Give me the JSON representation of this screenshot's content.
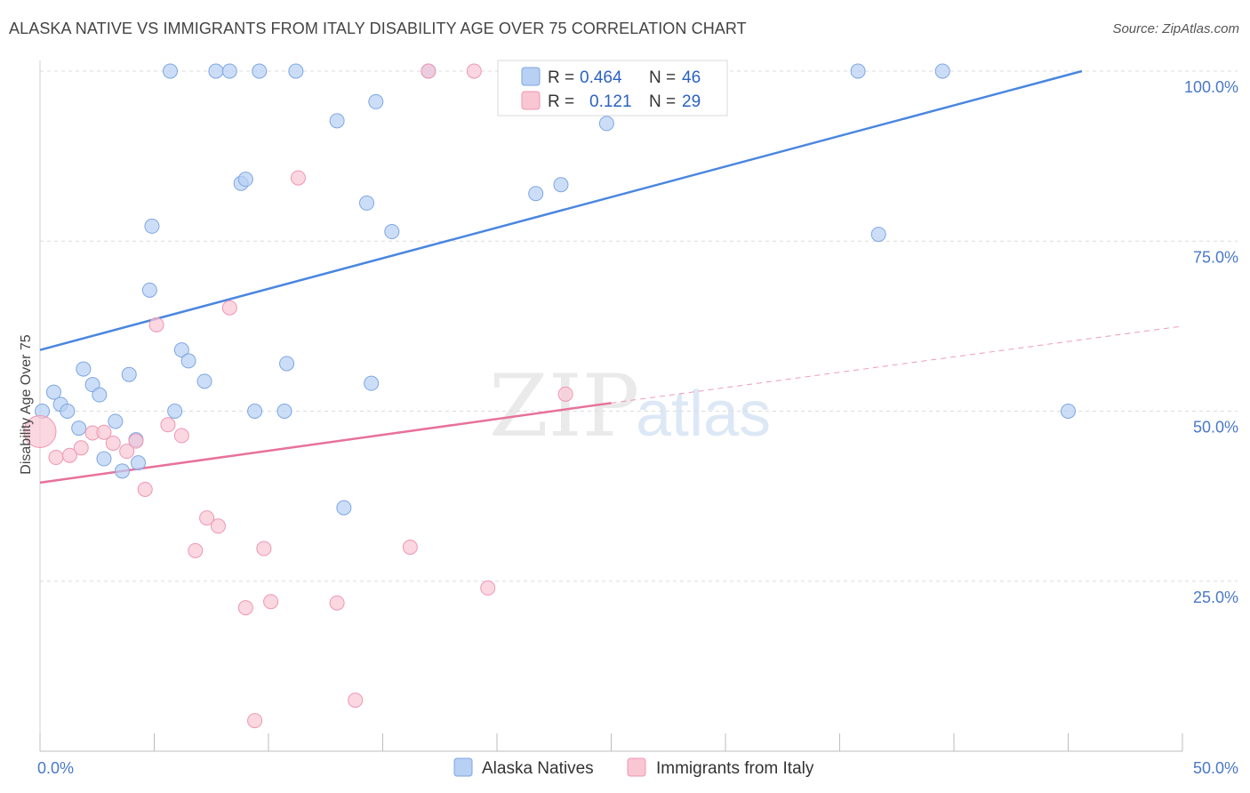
{
  "header": {
    "title": "ALASKA NATIVE VS IMMIGRANTS FROM ITALY DISABILITY AGE OVER 75 CORRELATION CHART",
    "source": "Source: ZipAtlas.com"
  },
  "watermark": {
    "zip": "ZIP",
    "atlas": "atlas"
  },
  "legend": {
    "r_label": "R =",
    "n_label": "N =",
    "entries": [
      {
        "r": "0.464",
        "n": "46",
        "fill": "#b7d0f3",
        "stroke": "#7ea6e3"
      },
      {
        "r": "0.121",
        "n": "29",
        "fill": "#f9c6d4",
        "stroke": "#ee97b1"
      }
    ]
  },
  "chart_data": {
    "type": "scatter",
    "title": "ALASKA NATIVE VS IMMIGRANTS FROM ITALY DISABILITY AGE OVER 75 CORRELATION CHART",
    "xlabel": "",
    "ylabel": "Disability Age Over 75",
    "xlim": [
      0,
      50
    ],
    "ylim": [
      0,
      105
    ],
    "x_tick_labels": [
      "0.0%",
      "50.0%"
    ],
    "y_ticks": [
      25,
      50,
      75,
      100
    ],
    "y_tick_labels": [
      "25.0%",
      "50.0%",
      "75.0%",
      "100.0%"
    ],
    "grid": true,
    "legend_position": "top-center",
    "series": [
      {
        "name": "Alaska Natives",
        "color": "#4a86e0",
        "fill": "#b7d0f3",
        "trend": {
          "x": [
            0,
            45.6
          ],
          "y": [
            59,
            100
          ]
        },
        "points": [
          [
            0.1,
            50
          ],
          [
            0.6,
            52.8
          ],
          [
            0.9,
            51
          ],
          [
            1.2,
            50
          ],
          [
            1.7,
            47.5
          ],
          [
            1.9,
            56.2
          ],
          [
            2.3,
            53.9
          ],
          [
            2.6,
            52.4
          ],
          [
            2.8,
            43
          ],
          [
            3.3,
            48.5
          ],
          [
            3.6,
            41.2
          ],
          [
            3.9,
            55.4
          ],
          [
            4.2,
            45.8
          ],
          [
            4.3,
            42.4
          ],
          [
            4.8,
            67.8
          ],
          [
            4.9,
            77.2
          ],
          [
            5.7,
            100
          ],
          [
            5.9,
            50
          ],
          [
            6.2,
            59
          ],
          [
            6.5,
            57.4
          ],
          [
            7.2,
            54.4
          ],
          [
            7.7,
            100
          ],
          [
            8.3,
            100
          ],
          [
            8.8,
            83.5
          ],
          [
            9.0,
            84.1
          ],
          [
            9.4,
            50
          ],
          [
            9.6,
            100
          ],
          [
            10.7,
            50
          ],
          [
            10.8,
            57
          ],
          [
            11.2,
            100
          ],
          [
            13.0,
            92.7
          ],
          [
            13.3,
            35.8
          ],
          [
            14.3,
            80.6
          ],
          [
            14.5,
            54.1
          ],
          [
            14.7,
            95.5
          ],
          [
            15.4,
            76.4
          ],
          [
            17.0,
            100
          ],
          [
            20.7,
            100
          ],
          [
            21.7,
            82
          ],
          [
            22.8,
            83.3
          ],
          [
            24.8,
            92.3
          ],
          [
            29.2,
            100
          ],
          [
            35.8,
            100
          ],
          [
            36.7,
            76
          ],
          [
            39.5,
            100
          ],
          [
            45.0,
            50
          ]
        ]
      },
      {
        "name": "Immigrants from Italy",
        "color": "#e8719a",
        "fill": "#f9c6d4",
        "trend": {
          "x": [
            0,
            25
          ],
          "y": [
            39.5,
            51.2
          ]
        },
        "trend_extension": {
          "x": [
            25,
            50
          ],
          "y": [
            51.2,
            62.5
          ]
        },
        "points": [
          [
            0,
            47
          ],
          [
            0.7,
            43.2
          ],
          [
            1.3,
            43.5
          ],
          [
            1.8,
            44.6
          ],
          [
            2.3,
            46.8
          ],
          [
            2.8,
            46.9
          ],
          [
            3.2,
            45.3
          ],
          [
            3.8,
            44.1
          ],
          [
            4.2,
            45.6
          ],
          [
            4.6,
            38.5
          ],
          [
            5.1,
            62.7
          ],
          [
            5.6,
            48
          ],
          [
            6.2,
            46.4
          ],
          [
            6.8,
            29.5
          ],
          [
            7.3,
            34.3
          ],
          [
            7.8,
            33.1
          ],
          [
            8.3,
            65.2
          ],
          [
            9.0,
            21.1
          ],
          [
            9.4,
            4.5
          ],
          [
            9.8,
            29.8
          ],
          [
            10.1,
            22
          ],
          [
            11.3,
            84.3
          ],
          [
            13.0,
            21.8
          ],
          [
            13.8,
            7.5
          ],
          [
            16.2,
            30
          ],
          [
            17.0,
            100
          ],
          [
            19.6,
            24
          ],
          [
            19.0,
            100
          ],
          [
            23.0,
            52.5
          ]
        ]
      }
    ]
  }
}
